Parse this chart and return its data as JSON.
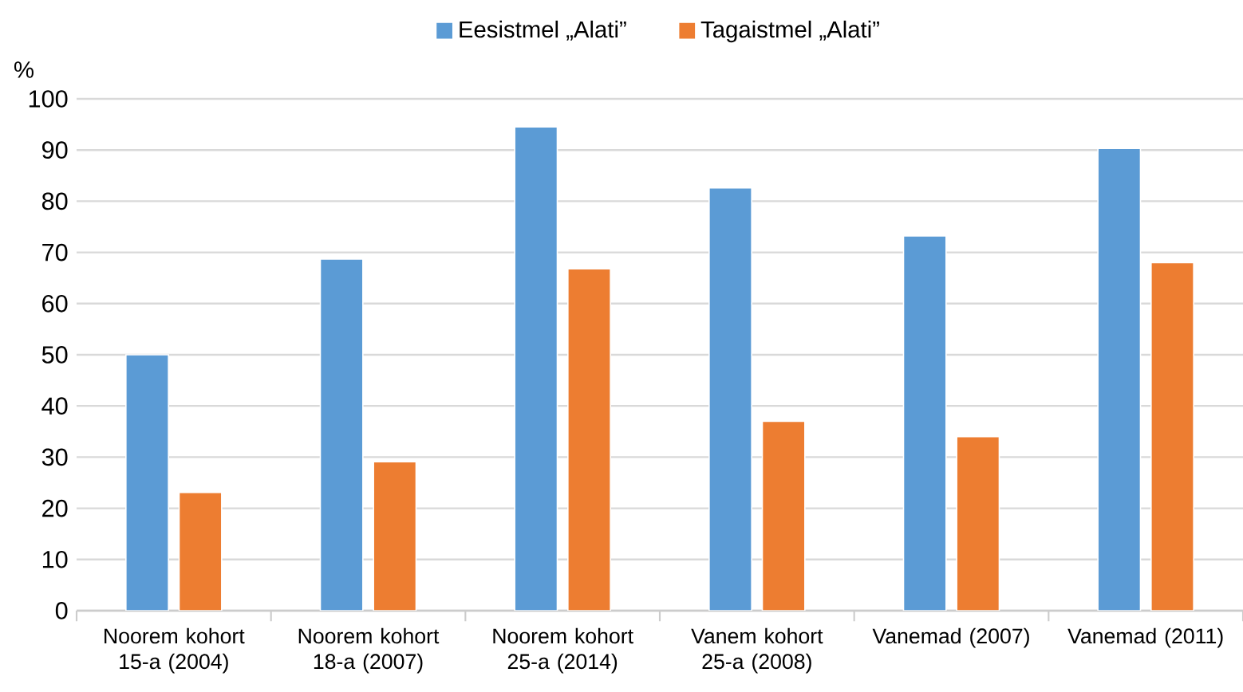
{
  "chart_data": {
    "type": "bar",
    "ylabel": "%",
    "categories": [
      "Noorem kohort 15-a (2004)",
      "Noorem kohort 18-a (2007)",
      "Noorem kohort 25-a (2014)",
      "Vanem kohort 25-a (2008)",
      "Vanemad (2007)",
      "Vanemad (2011)"
    ],
    "series": [
      {
        "name": "Eesistmel „Alati”",
        "color": "#5b9bd5",
        "values": [
          50,
          68.7,
          94.5,
          82.6,
          73.2,
          90.3
        ]
      },
      {
        "name": "Tagaistmel „Alati”",
        "color": "#ed7d31",
        "values": [
          23.1,
          29.1,
          66.8,
          37.0,
          34.0,
          68.0
        ]
      }
    ],
    "ylim": [
      0,
      100
    ],
    "yticks": [
      0,
      10,
      20,
      30,
      40,
      50,
      60,
      70,
      80,
      90,
      100
    ],
    "grid": "y",
    "legend": "top"
  }
}
